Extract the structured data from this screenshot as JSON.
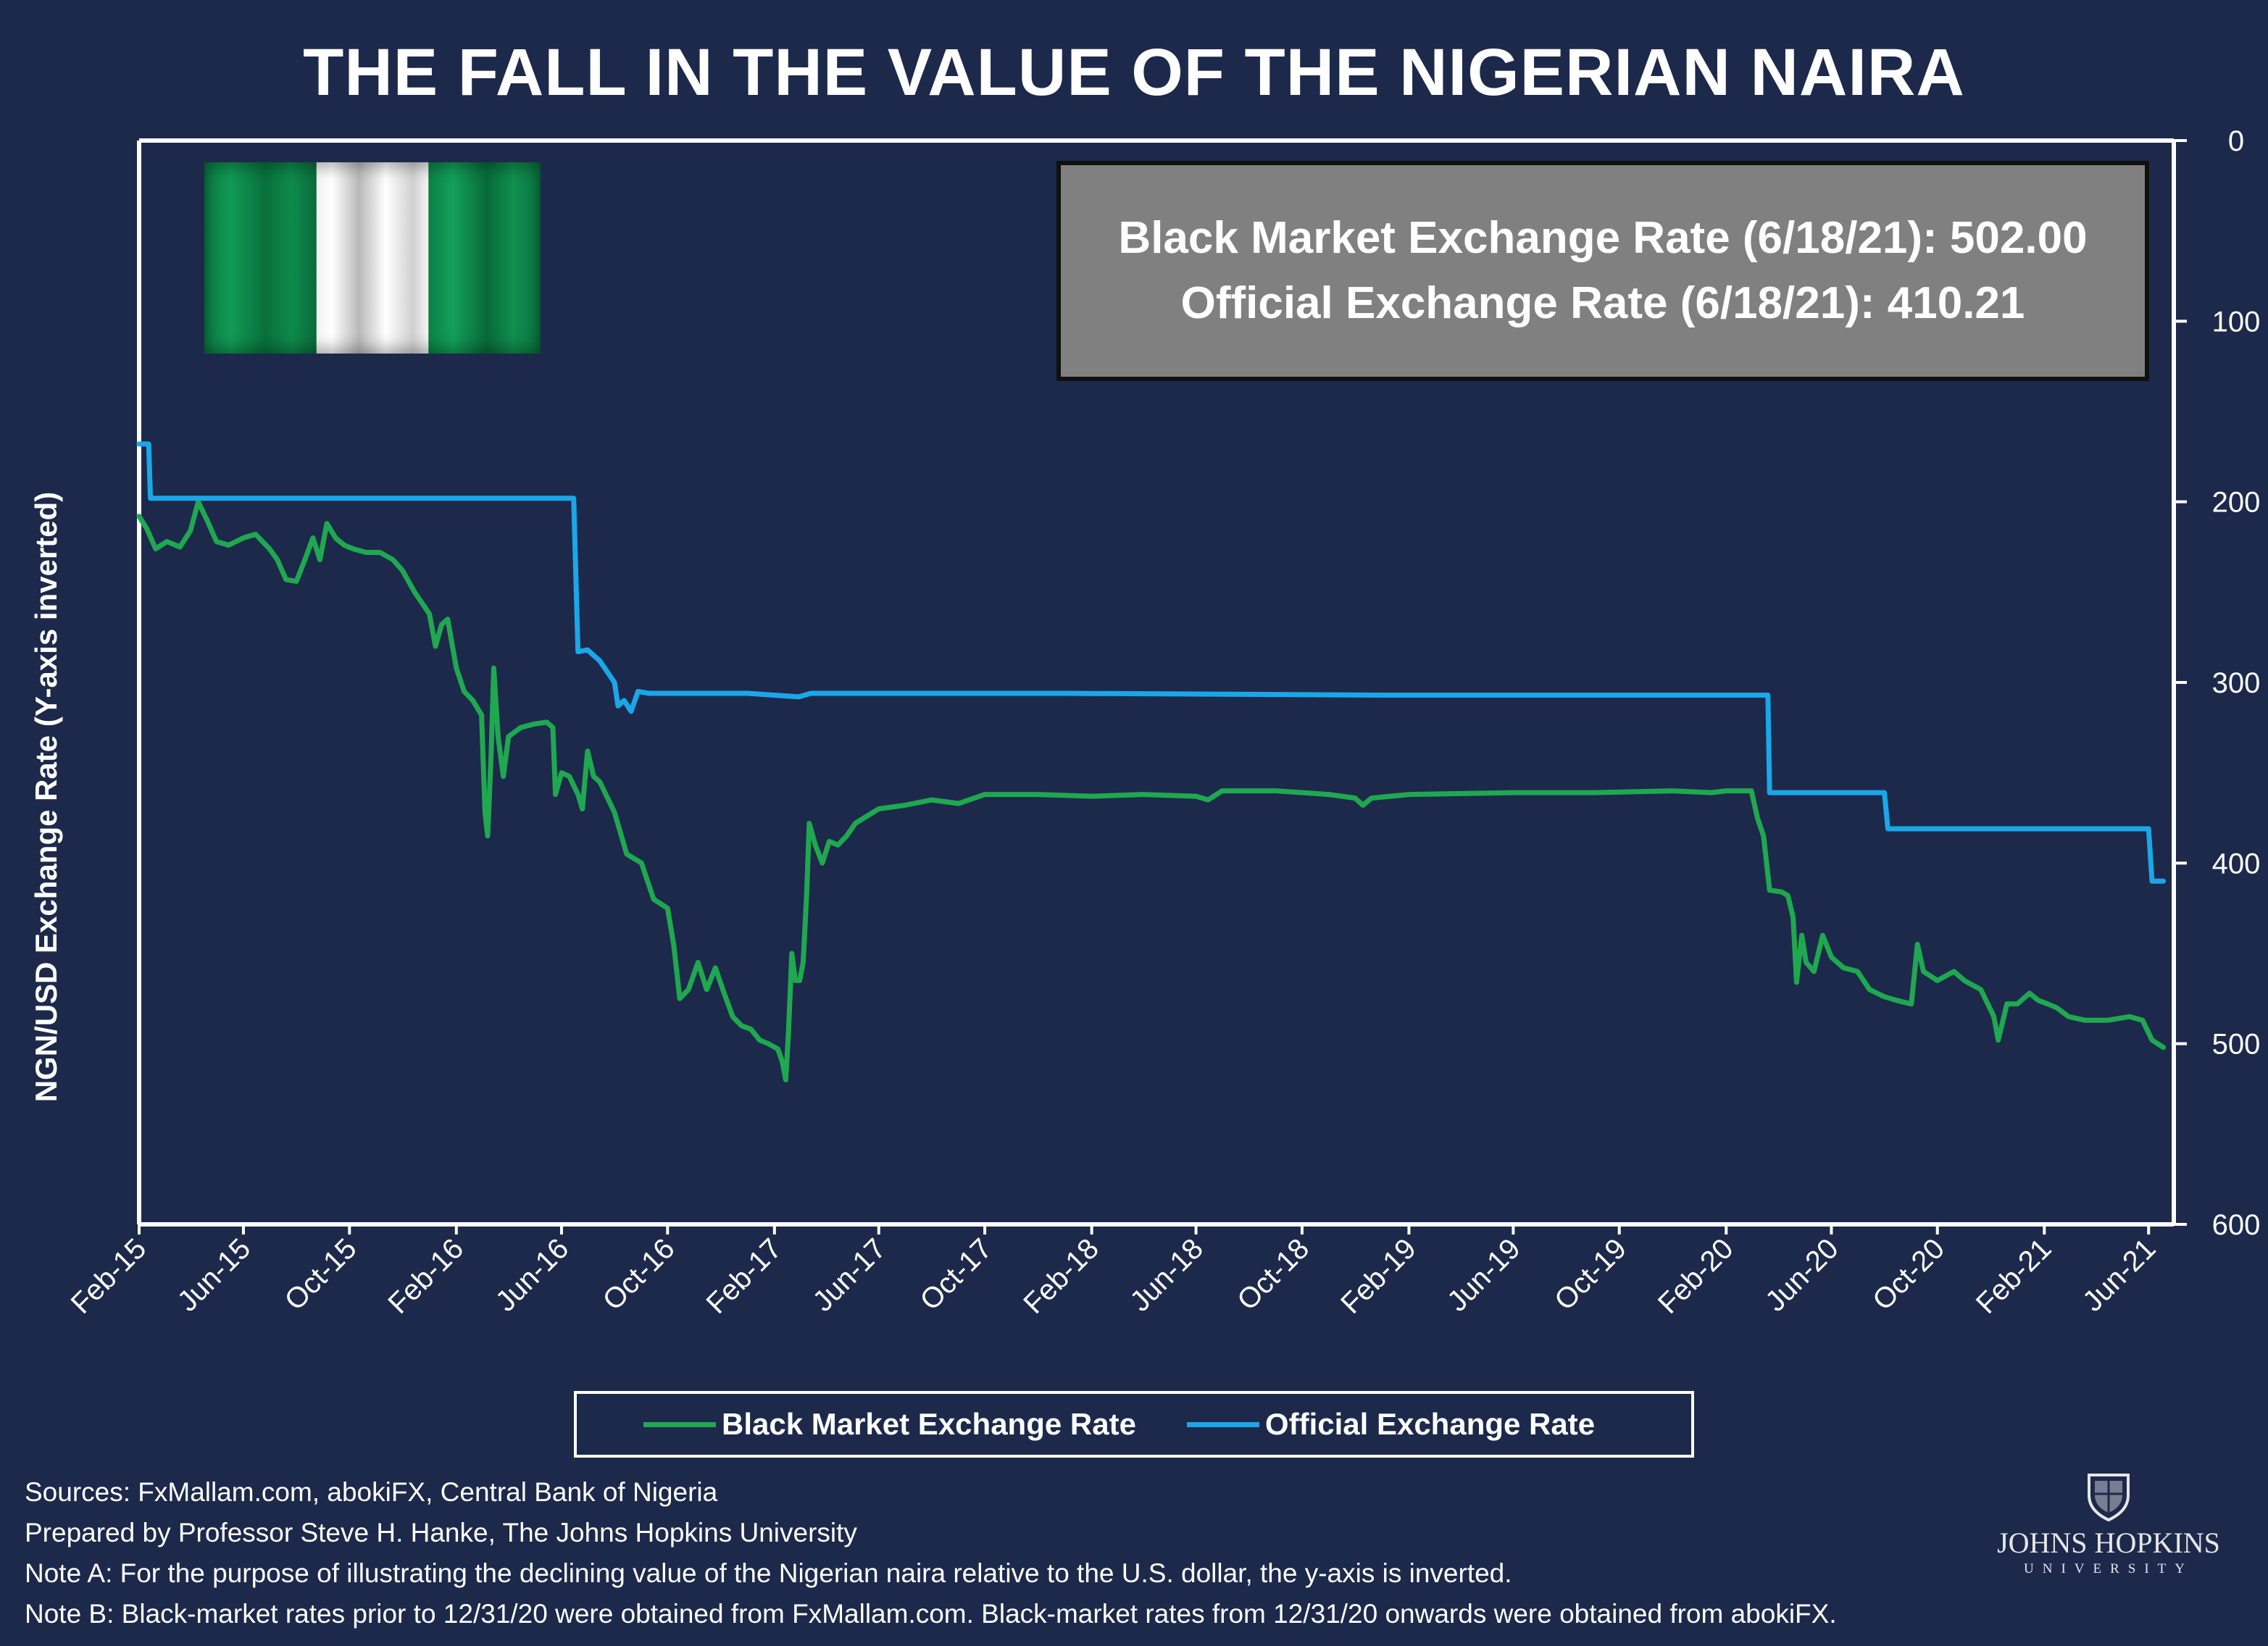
{
  "title": "THE FALL IN THE VALUE OF THE NIGERIAN NAIRA",
  "info_box": {
    "line1": "Black Market Exchange Rate (6/18/21): 502.00",
    "line2": "Official Exchange Rate (6/18/21): 410.21"
  },
  "legend": {
    "black": "Black Market Exchange Rate",
    "official": "Official Exchange Rate"
  },
  "footer": {
    "sources": "Sources: FxMallam.com, abokiFX, Central Bank of Nigeria",
    "prepared": "Prepared by Professor Steve H. Hanke, The Johns Hopkins University",
    "note_a": "Note A: For the purpose of illustrating the declining value of the Nigerian naira relative to the U.S. dollar, the y-axis is inverted.",
    "note_b": "Note B: Black-market rates prior to 12/31/20 were obtained from FxMallam.com. Black-market rates from 12/31/20 onwards were obtained from abokiFX."
  },
  "logo": {
    "name": "JOHNS HOPKINS",
    "sub": "UNIVERSITY"
  },
  "colors": {
    "background": "#1c294b",
    "black_market": "#1fa84f",
    "official": "#1aa7e8",
    "axis": "#ffffff"
  },
  "chart_data": {
    "type": "line",
    "title": "THE FALL IN THE VALUE OF THE NIGERIAN NAIRA",
    "xlabel": "",
    "ylabel": "NGN/USD Exchange Rate (Y-axis inverted)",
    "y_inverted": true,
    "ylim": [
      0,
      600
    ],
    "yticks": [
      0,
      100,
      200,
      300,
      400,
      500,
      600
    ],
    "xlim": [
      "2015-02-01",
      "2021-06-30"
    ],
    "xtick_dates": [
      "2015-02-01",
      "2015-06-01",
      "2015-10-01",
      "2016-02-01",
      "2016-06-01",
      "2016-10-01",
      "2017-02-01",
      "2017-06-01",
      "2017-10-01",
      "2018-02-01",
      "2018-06-01",
      "2018-10-01",
      "2019-02-01",
      "2019-06-01",
      "2019-10-01",
      "2020-02-01",
      "2020-06-01",
      "2020-10-01",
      "2021-02-01",
      "2021-06-01"
    ],
    "xtick_labels": [
      "Feb-15",
      "Jun-15",
      "Oct-15",
      "Feb-16",
      "Jun-16",
      "Oct-16",
      "Feb-17",
      "Jun-17",
      "Oct-17",
      "Feb-18",
      "Jun-18",
      "Oct-18",
      "Feb-19",
      "Jun-19",
      "Oct-19",
      "Feb-20",
      "Jun-20",
      "Oct-20",
      "Feb-21",
      "Jun-21"
    ],
    "legend_position": "bottom",
    "series": [
      {
        "name": "Black Market Exchange Rate",
        "color": "#1fa84f",
        "points": [
          [
            "2015-02-01",
            208
          ],
          [
            "2015-02-10",
            215
          ],
          [
            "2015-02-20",
            226
          ],
          [
            "2015-03-05",
            222
          ],
          [
            "2015-03-20",
            225
          ],
          [
            "2015-04-01",
            216
          ],
          [
            "2015-04-10",
            200
          ],
          [
            "2015-04-20",
            210
          ],
          [
            "2015-05-01",
            222
          ],
          [
            "2015-05-15",
            224
          ],
          [
            "2015-06-01",
            220
          ],
          [
            "2015-06-15",
            218
          ],
          [
            "2015-07-01",
            226
          ],
          [
            "2015-07-10",
            232
          ],
          [
            "2015-07-20",
            243
          ],
          [
            "2015-08-01",
            244
          ],
          [
            "2015-08-10",
            233
          ],
          [
            "2015-08-20",
            220
          ],
          [
            "2015-08-28",
            232
          ],
          [
            "2015-09-05",
            212
          ],
          [
            "2015-09-15",
            220
          ],
          [
            "2015-09-25",
            224
          ],
          [
            "2015-10-05",
            226
          ],
          [
            "2015-10-20",
            228
          ],
          [
            "2015-11-05",
            228
          ],
          [
            "2015-11-20",
            232
          ],
          [
            "2015-12-01",
            238
          ],
          [
            "2015-12-15",
            250
          ],
          [
            "2016-01-01",
            262
          ],
          [
            "2016-01-08",
            280
          ],
          [
            "2016-01-15",
            268
          ],
          [
            "2016-01-22",
            265
          ],
          [
            "2016-02-01",
            292
          ],
          [
            "2016-02-10",
            305
          ],
          [
            "2016-02-20",
            310
          ],
          [
            "2016-03-01",
            318
          ],
          [
            "2016-03-05",
            372
          ],
          [
            "2016-03-08",
            385
          ],
          [
            "2016-03-12",
            340
          ],
          [
            "2016-03-15",
            292
          ],
          [
            "2016-03-20",
            330
          ],
          [
            "2016-03-26",
            352
          ],
          [
            "2016-04-01",
            330
          ],
          [
            "2016-04-15",
            325
          ],
          [
            "2016-05-01",
            323
          ],
          [
            "2016-05-15",
            322
          ],
          [
            "2016-05-22",
            325
          ],
          [
            "2016-05-25",
            362
          ],
          [
            "2016-06-01",
            350
          ],
          [
            "2016-06-10",
            352
          ],
          [
            "2016-06-20",
            362
          ],
          [
            "2016-06-25",
            370
          ],
          [
            "2016-07-01",
            338
          ],
          [
            "2016-07-08",
            352
          ],
          [
            "2016-07-15",
            355
          ],
          [
            "2016-08-01",
            372
          ],
          [
            "2016-08-15",
            395
          ],
          [
            "2016-09-01",
            400
          ],
          [
            "2016-09-15",
            420
          ],
          [
            "2016-10-01",
            425
          ],
          [
            "2016-10-08",
            445
          ],
          [
            "2016-10-15",
            475
          ],
          [
            "2016-10-25",
            470
          ],
          [
            "2016-11-05",
            455
          ],
          [
            "2016-11-15",
            470
          ],
          [
            "2016-11-25",
            458
          ],
          [
            "2016-12-05",
            472
          ],
          [
            "2016-12-15",
            485
          ],
          [
            "2016-12-25",
            490
          ],
          [
            "2017-01-05",
            492
          ],
          [
            "2017-01-15",
            498
          ],
          [
            "2017-01-25",
            500
          ],
          [
            "2017-02-05",
            503
          ],
          [
            "2017-02-10",
            510
          ],
          [
            "2017-02-14",
            520
          ],
          [
            "2017-02-17",
            495
          ],
          [
            "2017-02-21",
            450
          ],
          [
            "2017-02-25",
            465
          ],
          [
            "2017-03-02",
            465
          ],
          [
            "2017-03-06",
            455
          ],
          [
            "2017-03-10",
            418
          ],
          [
            "2017-03-13",
            378
          ],
          [
            "2017-03-20",
            390
          ],
          [
            "2017-03-28",
            400
          ],
          [
            "2017-04-05",
            388
          ],
          [
            "2017-04-15",
            390
          ],
          [
            "2017-04-25",
            385
          ],
          [
            "2017-05-05",
            378
          ],
          [
            "2017-05-15",
            375
          ],
          [
            "2017-06-01",
            370
          ],
          [
            "2017-07-01",
            368
          ],
          [
            "2017-08-01",
            365
          ],
          [
            "2017-09-01",
            367
          ],
          [
            "2017-10-01",
            362
          ],
          [
            "2017-12-01",
            362
          ],
          [
            "2018-02-01",
            363
          ],
          [
            "2018-04-01",
            362
          ],
          [
            "2018-06-01",
            363
          ],
          [
            "2018-06-15",
            365
          ],
          [
            "2018-07-01",
            360
          ],
          [
            "2018-09-01",
            360
          ],
          [
            "2018-11-01",
            362
          ],
          [
            "2018-12-01",
            364
          ],
          [
            "2018-12-10",
            368
          ],
          [
            "2018-12-20",
            364
          ],
          [
            "2019-02-01",
            362
          ],
          [
            "2019-06-01",
            361
          ],
          [
            "2019-09-01",
            361
          ],
          [
            "2019-12-01",
            360
          ],
          [
            "2020-01-15",
            361
          ],
          [
            "2020-02-01",
            360
          ],
          [
            "2020-02-20",
            360
          ],
          [
            "2020-03-01",
            360
          ],
          [
            "2020-03-08",
            375
          ],
          [
            "2020-03-15",
            385
          ],
          [
            "2020-03-22",
            415
          ],
          [
            "2020-04-05",
            416
          ],
          [
            "2020-04-12",
            418
          ],
          [
            "2020-04-18",
            430
          ],
          [
            "2020-04-22",
            466
          ],
          [
            "2020-04-28",
            440
          ],
          [
            "2020-05-03",
            455
          ],
          [
            "2020-05-12",
            460
          ],
          [
            "2020-05-22",
            440
          ],
          [
            "2020-06-01",
            452
          ],
          [
            "2020-06-15",
            458
          ],
          [
            "2020-07-01",
            460
          ],
          [
            "2020-07-15",
            470
          ],
          [
            "2020-08-01",
            474
          ],
          [
            "2020-08-15",
            476
          ],
          [
            "2020-09-01",
            478
          ],
          [
            "2020-09-08",
            445
          ],
          [
            "2020-09-15",
            460
          ],
          [
            "2020-10-01",
            465
          ],
          [
            "2020-10-20",
            460
          ],
          [
            "2020-11-01",
            465
          ],
          [
            "2020-11-20",
            470
          ],
          [
            "2020-12-05",
            485
          ],
          [
            "2020-12-10",
            498
          ],
          [
            "2020-12-20",
            478
          ],
          [
            "2021-01-01",
            478
          ],
          [
            "2021-01-15",
            472
          ],
          [
            "2021-01-25",
            476
          ],
          [
            "2021-02-05",
            478
          ],
          [
            "2021-02-15",
            480
          ],
          [
            "2021-03-01",
            485
          ],
          [
            "2021-03-20",
            487
          ],
          [
            "2021-04-15",
            487
          ],
          [
            "2021-05-10",
            485
          ],
          [
            "2021-05-25",
            487
          ],
          [
            "2021-06-05",
            498
          ],
          [
            "2021-06-18",
            502
          ]
        ]
      },
      {
        "name": "Official Exchange Rate",
        "color": "#1aa7e8",
        "points": [
          [
            "2015-02-01",
            168
          ],
          [
            "2015-02-12",
            168
          ],
          [
            "2015-02-14",
            198
          ],
          [
            "2016-06-15",
            198
          ],
          [
            "2016-06-20",
            283
          ],
          [
            "2016-07-01",
            282
          ],
          [
            "2016-07-15",
            288
          ],
          [
            "2016-08-01",
            300
          ],
          [
            "2016-08-05",
            313
          ],
          [
            "2016-08-12",
            310
          ],
          [
            "2016-08-20",
            316
          ],
          [
            "2016-08-28",
            305
          ],
          [
            "2016-09-10",
            306
          ],
          [
            "2017-01-01",
            306
          ],
          [
            "2017-03-01",
            308
          ],
          [
            "2017-03-15",
            306
          ],
          [
            "2018-01-01",
            306
          ],
          [
            "2019-01-01",
            307
          ],
          [
            "2020-03-01",
            307
          ],
          [
            "2020-03-20",
            307
          ],
          [
            "2020-03-22",
            361
          ],
          [
            "2020-08-01",
            361
          ],
          [
            "2020-08-05",
            381
          ],
          [
            "2021-06-01",
            381
          ],
          [
            "2021-06-05",
            410
          ],
          [
            "2021-06-18",
            410
          ]
        ]
      }
    ]
  }
}
